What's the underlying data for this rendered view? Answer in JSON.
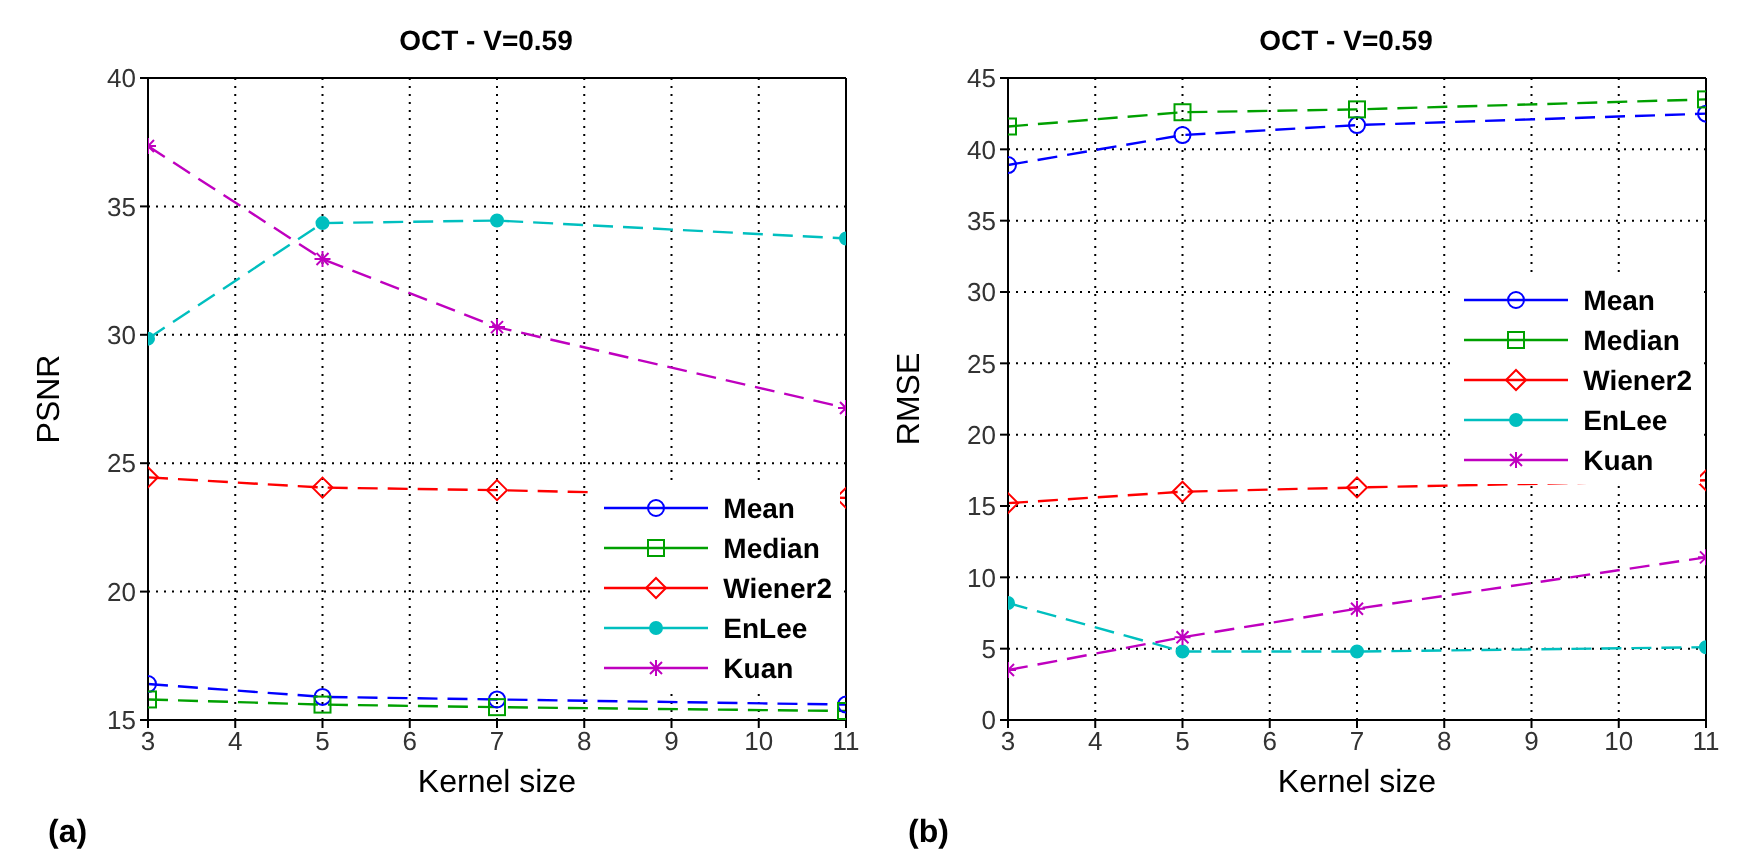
{
  "chart_data": [
    {
      "type": "line",
      "title": "OCT - V=0.59",
      "xlabel": "Kernel size",
      "ylabel": "PSNR",
      "annotations": [
        "(a)"
      ],
      "x": [
        3,
        5,
        7,
        11
      ],
      "xlim": [
        3,
        11
      ],
      "xticks": [
        3,
        4,
        5,
        6,
        7,
        8,
        9,
        10,
        11
      ],
      "ylim": [
        15,
        40
      ],
      "yticks": [
        15,
        20,
        25,
        30,
        35,
        40
      ],
      "grid": true,
      "legend": "bottom right",
      "line_style": "dashed",
      "series": [
        {
          "name": "Mean",
          "color": "#0000ff",
          "marker": "circle",
          "values": [
            16.4,
            15.9,
            15.8,
            15.6
          ]
        },
        {
          "name": "Median",
          "color": "#00a000",
          "marker": "square",
          "values": [
            15.8,
            15.6,
            15.5,
            15.35
          ]
        },
        {
          "name": "Wiener2",
          "color": "#ff0000",
          "marker": "diamond",
          "values": [
            24.45,
            24.05,
            23.95,
            23.65
          ]
        },
        {
          "name": "EnLee",
          "color": "#00bfbf",
          "marker": "circle",
          "values": [
            29.85,
            34.35,
            34.45,
            33.75
          ]
        },
        {
          "name": "Kuan",
          "color": "#bf00bf",
          "marker": "cross",
          "values": [
            37.35,
            32.95,
            30.3,
            27.15
          ]
        }
      ]
    },
    {
      "type": "line",
      "title": "OCT - V=0.59",
      "xlabel": "Kernel size",
      "ylabel": "RMSE",
      "annotations": [
        "(b)"
      ],
      "x": [
        3,
        5,
        7,
        11
      ],
      "xlim": [
        3,
        11
      ],
      "xticks": [
        3,
        4,
        5,
        6,
        7,
        8,
        9,
        10,
        11
      ],
      "ylim": [
        0,
        45
      ],
      "yticks": [
        0,
        5,
        10,
        15,
        20,
        25,
        30,
        35,
        40,
        45
      ],
      "grid": true,
      "legend": "right",
      "line_style": "dashed",
      "series": [
        {
          "name": "Mean",
          "color": "#0000ff",
          "marker": "circle",
          "values": [
            38.9,
            41.0,
            41.7,
            42.5
          ]
        },
        {
          "name": "Median",
          "color": "#00a000",
          "marker": "square",
          "values": [
            41.6,
            42.6,
            42.8,
            43.5
          ]
        },
        {
          "name": "Wiener2",
          "color": "#ff0000",
          "marker": "diamond",
          "values": [
            15.2,
            16.0,
            16.3,
            16.8
          ]
        },
        {
          "name": "EnLee",
          "color": "#00bfbf",
          "marker": "circle",
          "values": [
            8.2,
            4.8,
            4.8,
            5.1
          ]
        },
        {
          "name": "Kuan",
          "color": "#bf00bf",
          "marker": "cross",
          "values": [
            3.5,
            5.8,
            7.8,
            11.4
          ]
        }
      ]
    }
  ]
}
